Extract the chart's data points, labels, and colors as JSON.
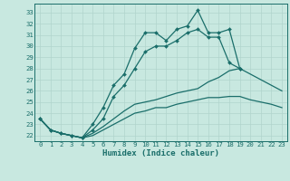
{
  "xlabel": "Humidex (Indice chaleur)",
  "bg_color": "#c8e8e0",
  "grid_color": "#b0d4cc",
  "line_color": "#1a6e6a",
  "xlim": [
    -0.5,
    23.5
  ],
  "ylim": [
    21.5,
    33.8
  ],
  "yticks": [
    22,
    23,
    24,
    25,
    26,
    27,
    28,
    29,
    30,
    31,
    32,
    33
  ],
  "xticks": [
    0,
    1,
    2,
    3,
    4,
    5,
    6,
    7,
    8,
    9,
    10,
    11,
    12,
    13,
    14,
    15,
    16,
    17,
    18,
    19,
    20,
    21,
    22,
    23
  ],
  "series": [
    [
      23.5,
      22.5,
      22.2,
      22.0,
      21.8,
      23.0,
      24.5,
      26.5,
      27.5,
      29.8,
      31.2,
      31.2,
      30.5,
      31.5,
      31.8,
      33.2,
      31.2,
      31.2,
      31.5,
      28.0,
      null,
      null,
      null,
      null
    ],
    [
      23.5,
      22.5,
      22.2,
      22.0,
      21.8,
      22.5,
      23.5,
      25.5,
      26.5,
      28.0,
      29.5,
      30.0,
      30.0,
      30.5,
      31.2,
      31.5,
      30.8,
      30.8,
      28.5,
      28.0,
      null,
      null,
      null,
      null
    ],
    [
      23.5,
      22.5,
      22.2,
      22.0,
      21.8,
      22.2,
      22.8,
      23.5,
      24.2,
      24.8,
      25.0,
      25.2,
      25.5,
      25.8,
      26.0,
      26.2,
      26.8,
      27.2,
      27.8,
      28.0,
      27.5,
      27.0,
      26.5,
      26.0
    ],
    [
      23.5,
      22.5,
      22.2,
      22.0,
      21.8,
      22.0,
      22.5,
      23.0,
      23.5,
      24.0,
      24.2,
      24.5,
      24.5,
      24.8,
      25.0,
      25.2,
      25.4,
      25.4,
      25.5,
      25.5,
      25.2,
      25.0,
      24.8,
      24.5
    ]
  ],
  "marker_series": [
    0,
    1
  ],
  "marker": "D",
  "markersize": 2.0,
  "linewidth": 0.9,
  "tick_fontsize": 5.2,
  "xlabel_fontsize": 6.5
}
